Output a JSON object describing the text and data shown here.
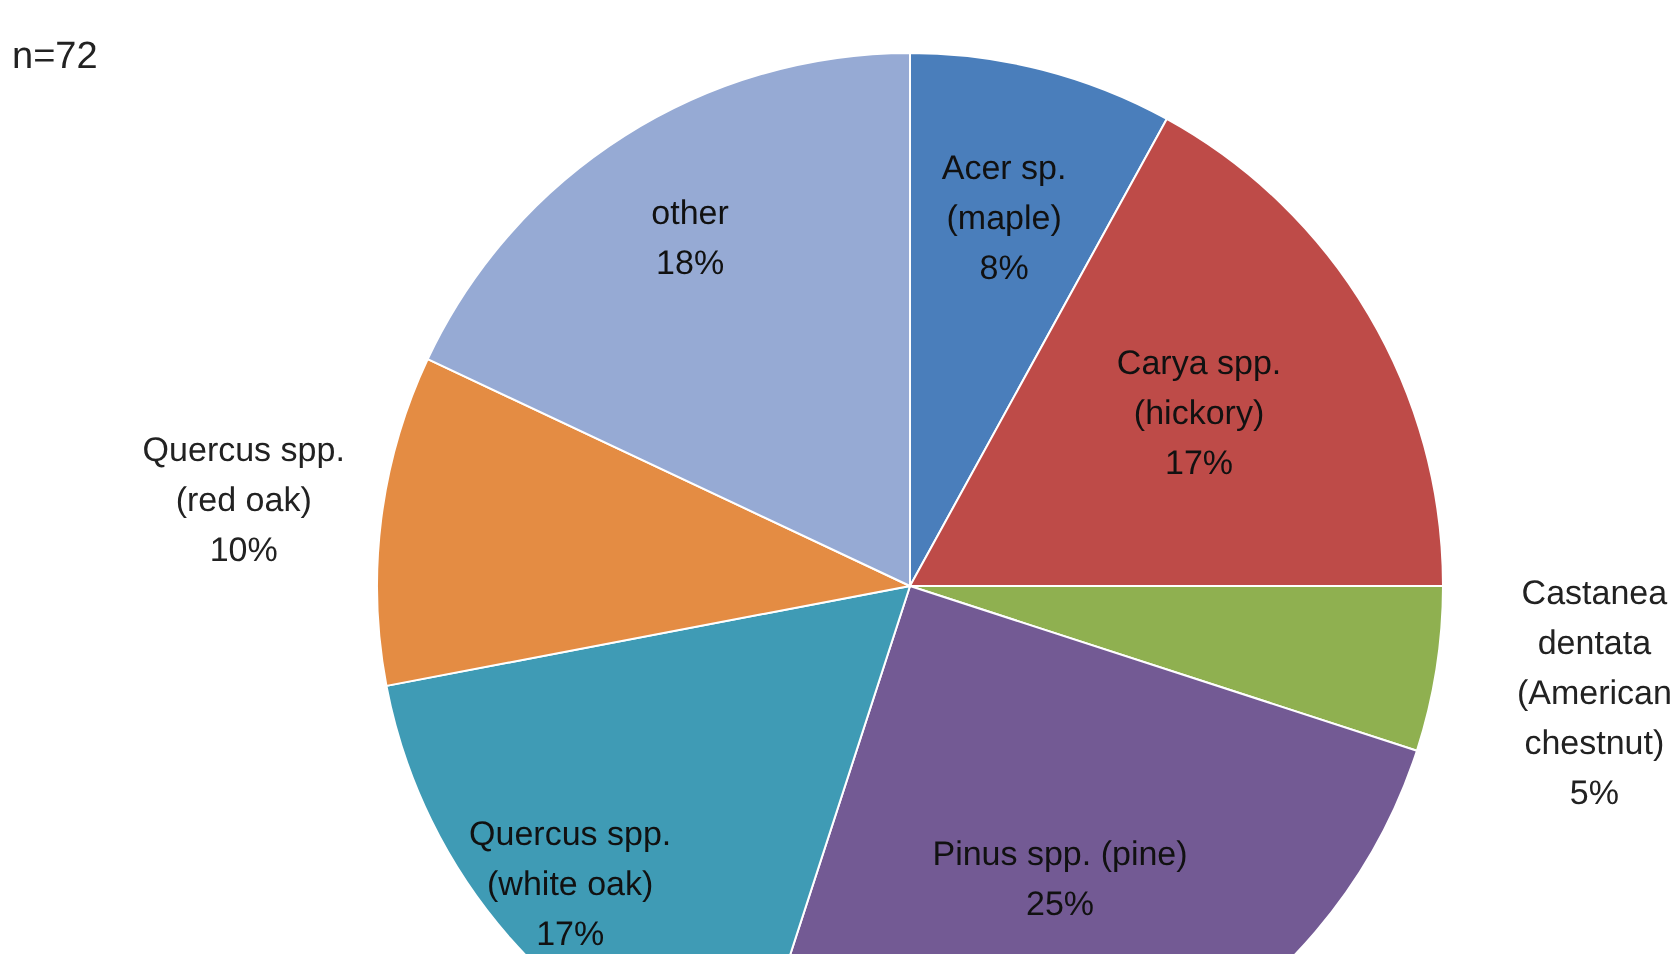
{
  "chart_data": {
    "type": "pie",
    "annotations": [
      "n=72"
    ],
    "categories": [
      "Acer sp. (maple)",
      "Carya spp. (hickory)",
      "Castanea dentata (American chestnut)",
      "Pinus spp. (pine)",
      "Quercus spp. (white oak)",
      "Quercus spp. (red oak)",
      "other"
    ],
    "values": [
      8,
      17,
      5,
      25,
      17,
      10,
      18
    ],
    "value_labels": [
      "8%",
      "17%",
      "5%",
      "25%",
      "17%",
      "10%",
      "18%"
    ],
    "colors": [
      "#4a7ebb",
      "#be4b48",
      "#8fb050",
      "#735a94",
      "#3f9bb5",
      "#e48c43",
      "#96aad4"
    ],
    "legend": false
  }
}
